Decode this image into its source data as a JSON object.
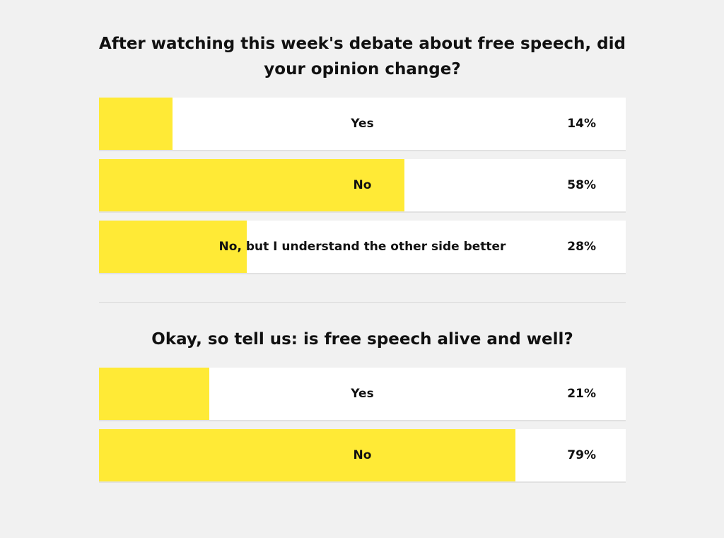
{
  "colors": {
    "page_background": "#f1f1f1",
    "bar_fill": "#ffea36",
    "option_background": "#ffffff",
    "text": "#111111"
  },
  "polls": [
    {
      "question": "After watching this week's debate about free speech, did your opinion change?",
      "options": [
        {
          "label": "Yes",
          "percent_label": "14%",
          "percent": 14
        },
        {
          "label": "No",
          "percent_label": "58%",
          "percent": 58
        },
        {
          "label": "No, but I understand the other side better",
          "percent_label": "28%",
          "percent": 28
        }
      ]
    },
    {
      "question": "Okay, so tell us: is free speech alive and well?",
      "options": [
        {
          "label": "Yes",
          "percent_label": "21%",
          "percent": 21
        },
        {
          "label": "No",
          "percent_label": "79%",
          "percent": 79
        }
      ]
    }
  ]
}
